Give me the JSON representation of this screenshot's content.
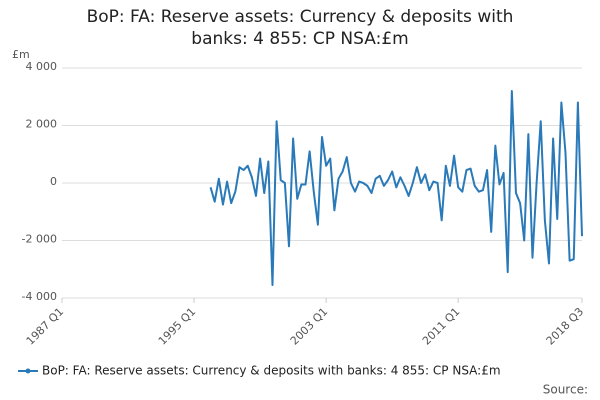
{
  "chart_data": {
    "type": "line",
    "title": "BoP: FA: Reserve assets: Currency & deposits with banks: 4 855: CP NSA:£m",
    "y_label": "£m",
    "source": "Source:",
    "categories": [
      "1987 Q1",
      null,
      null,
      null,
      null,
      null,
      null,
      null,
      null,
      null,
      null,
      null,
      null,
      null,
      null,
      null,
      null,
      null,
      null,
      null,
      null,
      null,
      null,
      null,
      null,
      null,
      null,
      null,
      null,
      null,
      null,
      null,
      "1995 Q1",
      null,
      null,
      null,
      null,
      null,
      null,
      null,
      null,
      null,
      null,
      null,
      null,
      null,
      null,
      null,
      null,
      null,
      null,
      null,
      null,
      null,
      null,
      null,
      null,
      null,
      null,
      null,
      null,
      null,
      null,
      null,
      "2003 Q1",
      null,
      null,
      null,
      null,
      null,
      null,
      null,
      null,
      null,
      null,
      null,
      null,
      null,
      null,
      null,
      null,
      null,
      null,
      null,
      null,
      null,
      null,
      null,
      null,
      null,
      null,
      null,
      null,
      null,
      null,
      null,
      "2011 Q1",
      null,
      null,
      null,
      null,
      null,
      null,
      null,
      null,
      null,
      null,
      null,
      null,
      null,
      null,
      null,
      null,
      null,
      null,
      null,
      null,
      null,
      null,
      null,
      null,
      null,
      null,
      null,
      null,
      null,
      "2018 Q3"
    ],
    "series": [
      {
        "name": "BoP: FA: Reserve assets: Currency & deposits with banks: 4 855: CP NSA:£m",
        "color": "#2a7ab9",
        "values": [
          null,
          null,
          null,
          null,
          null,
          null,
          null,
          null,
          null,
          null,
          null,
          null,
          null,
          null,
          null,
          null,
          null,
          null,
          null,
          null,
          null,
          null,
          null,
          null,
          null,
          null,
          null,
          null,
          null,
          null,
          null,
          null,
          null,
          null,
          null,
          null,
          -150,
          -650,
          150,
          -750,
          50,
          -700,
          -300,
          550,
          450,
          600,
          200,
          -450,
          850,
          -350,
          750,
          -3550,
          2150,
          100,
          0,
          -2200,
          1550,
          -550,
          -50,
          -50,
          1100,
          -300,
          -1450,
          1600,
          600,
          850,
          -950,
          150,
          400,
          900,
          0,
          -300,
          50,
          0,
          -100,
          -350,
          150,
          250,
          -100,
          100,
          400,
          -150,
          200,
          -100,
          -450,
          0,
          550,
          0,
          300,
          -250,
          50,
          0,
          -1300,
          600,
          -100,
          950,
          -150,
          -300,
          450,
          500,
          -100,
          -300,
          -250,
          450,
          -1700,
          1300,
          -50,
          350,
          -3100,
          3200,
          -350,
          -700,
          -2000,
          1700,
          -2600,
          0,
          2150,
          -1300,
          -2800,
          1550,
          -1250,
          2800,
          1050,
          -2700,
          -2650,
          2800,
          -1850
        ]
      }
    ],
    "ylim": [
      -4000,
      4000
    ],
    "yticks": [
      {
        "value": -4000,
        "label": "-4 000"
      },
      {
        "value": -2000,
        "label": "-2 000"
      },
      0,
      {
        "value": 2000,
        "label": "2 000"
      },
      {
        "value": 4000,
        "label": "4 000"
      }
    ],
    "grid": true
  }
}
